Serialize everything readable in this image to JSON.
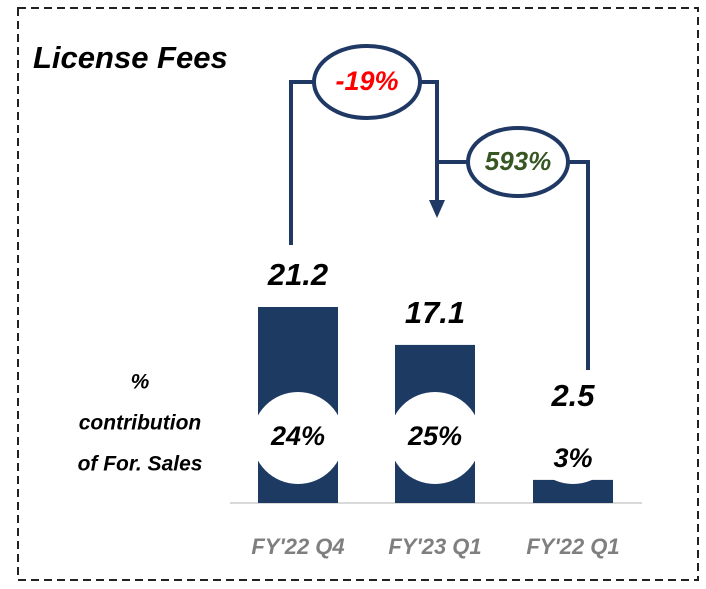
{
  "chart_data": {
    "type": "bar",
    "title": "License Fees",
    "categories": [
      "FY'22 Q4",
      "FY'23 Q1",
      "FY'22 Q1"
    ],
    "values": [
      21.2,
      17.1,
      2.5
    ],
    "color": "#1d3a63",
    "contribution_label": [
      "%",
      "contribution",
      "of For. Sales"
    ],
    "contribution": [
      {
        "value": 24,
        "label": "24%"
      },
      {
        "value": 25,
        "label": "25%"
      },
      {
        "value": 3,
        "label": "3%"
      }
    ],
    "changes": [
      {
        "label": "-19%",
        "color": "#ff0000"
      },
      {
        "label": "593%",
        "color": "#375623"
      }
    ]
  }
}
